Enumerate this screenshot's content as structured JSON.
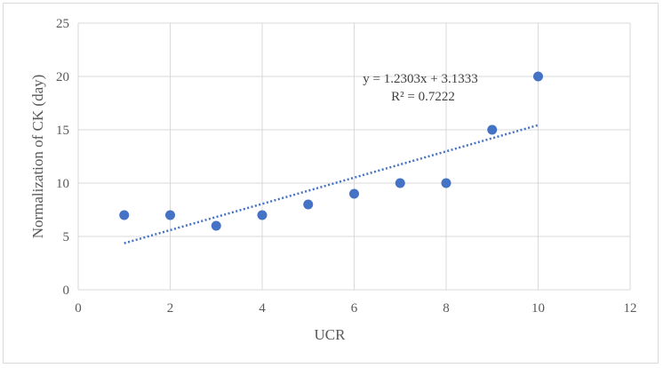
{
  "chart_data": {
    "type": "scatter",
    "title": "",
    "xlabel": "UCR",
    "ylabel": "Normalization of CK (day)",
    "xlim": [
      0,
      12
    ],
    "ylim": [
      0,
      25
    ],
    "xticks": [
      0,
      2,
      4,
      6,
      8,
      10,
      12
    ],
    "yticks": [
      0,
      5,
      10,
      15,
      20,
      25
    ],
    "grid": true,
    "series": [
      {
        "points": [
          {
            "x": 1,
            "y": 7
          },
          {
            "x": 2,
            "y": 7
          },
          {
            "x": 3,
            "y": 6
          },
          {
            "x": 4,
            "y": 7
          },
          {
            "x": 5,
            "y": 8
          },
          {
            "x": 6,
            "y": 9
          },
          {
            "x": 7,
            "y": 10
          },
          {
            "x": 8,
            "y": 10
          },
          {
            "x": 9,
            "y": 15
          },
          {
            "x": 10,
            "y": 20
          }
        ],
        "color": "#4472c4"
      }
    ],
    "trendline": {
      "type": "linear",
      "slope": 1.2303,
      "intercept": 3.1333,
      "x_range": [
        1,
        10
      ],
      "color": "#4472c4",
      "style": "dotted",
      "equation_label": "y = 1.2303x + 3.1333",
      "r2_label": "R² = 0.7222"
    },
    "colors": {
      "grid": "#d9d9d9",
      "text": "#595959"
    }
  }
}
